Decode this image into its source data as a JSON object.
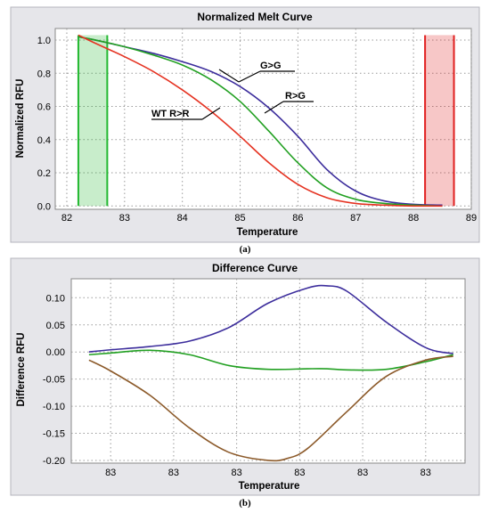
{
  "chart_data": [
    {
      "type": "line",
      "title": "Normalized Melt Curve",
      "xlabel": "Temperature",
      "ylabel": "Normalized RFU",
      "xlim": [
        81.8,
        89
      ],
      "ylim": [
        -0.02,
        1.07
      ],
      "xticks": [
        "82",
        "83",
        "84",
        "85",
        "86",
        "87",
        "88",
        "89"
      ],
      "yticks": [
        "0.0",
        "0.2",
        "0.4",
        "0.6",
        "0.8",
        "1.0"
      ],
      "grid": true,
      "caption": "(a)",
      "series": [
        {
          "color": "#3c2d9c",
          "x": [
            82.2,
            82.5,
            83,
            83.5,
            84,
            84.5,
            85,
            85.5,
            86,
            86.5,
            87,
            87.5,
            88,
            88.5
          ],
          "y": [
            1.02,
            1.0,
            0.96,
            0.92,
            0.87,
            0.81,
            0.72,
            0.59,
            0.42,
            0.22,
            0.09,
            0.03,
            0.01,
            0.005
          ]
        },
        {
          "color": "#22a022",
          "x": [
            82.2,
            82.5,
            83,
            83.5,
            84,
            84.5,
            85,
            85.5,
            86,
            86.5,
            87,
            87.5,
            88,
            88.5
          ],
          "y": [
            1.02,
            1.0,
            0.96,
            0.91,
            0.85,
            0.76,
            0.63,
            0.45,
            0.26,
            0.11,
            0.04,
            0.015,
            0.005,
            0.0
          ]
        },
        {
          "color": "#e53322",
          "x": [
            82.2,
            82.5,
            83,
            83.5,
            84,
            84.5,
            85,
            85.5,
            86,
            86.5,
            87,
            87.5,
            88,
            88.5
          ],
          "y": [
            1.03,
            0.98,
            0.9,
            0.81,
            0.7,
            0.57,
            0.42,
            0.26,
            0.13,
            0.05,
            0.015,
            0.005,
            0.0,
            0.0
          ]
        }
      ],
      "annotations": [
        "G>G",
        "R>G",
        "WT R>R"
      ],
      "highlight_regions": [
        {
          "x": [
            82.2,
            82.7
          ],
          "color": "#22b830"
        },
        {
          "x": [
            88.2,
            88.7
          ],
          "color": "#e02020"
        }
      ]
    },
    {
      "type": "line",
      "title": "Difference Curve",
      "xlabel": "Temperature",
      "ylabel": "Difference RFU",
      "xlim": [
        0,
        1
      ],
      "ylim": [
        -0.205,
        0.135
      ],
      "xticks": [
        "83",
        "83",
        "83",
        "83",
        "83",
        "83"
      ],
      "yticks": [
        "0.10",
        "0.05",
        "0.00",
        "-0.05",
        "-0.10",
        "-0.15",
        "-0.20"
      ],
      "grid": true,
      "caption": "(b)",
      "series": [
        {
          "color": "#3c2d9c",
          "x": [
            0.045,
            0.1,
            0.2,
            0.3,
            0.4,
            0.5,
            0.6,
            0.65,
            0.7,
            0.8,
            0.9,
            0.97
          ],
          "y": [
            0.0,
            0.004,
            0.01,
            0.02,
            0.045,
            0.09,
            0.118,
            0.122,
            0.112,
            0.055,
            0.008,
            -0.003
          ]
        },
        {
          "color": "#22a022",
          "x": [
            0.045,
            0.1,
            0.2,
            0.3,
            0.4,
            0.5,
            0.6,
            0.65,
            0.7,
            0.8,
            0.9,
            0.97
          ],
          "y": [
            -0.005,
            -0.002,
            0.003,
            -0.005,
            -0.025,
            -0.032,
            -0.031,
            -0.031,
            -0.033,
            -0.032,
            -0.018,
            -0.005
          ]
        },
        {
          "color": "#8c5a2a",
          "x": [
            0.045,
            0.1,
            0.2,
            0.3,
            0.4,
            0.5,
            0.55,
            0.6,
            0.7,
            0.8,
            0.9,
            0.97
          ],
          "y": [
            -0.015,
            -0.035,
            -0.08,
            -0.14,
            -0.185,
            -0.2,
            -0.196,
            -0.178,
            -0.11,
            -0.045,
            -0.015,
            -0.008
          ]
        }
      ]
    }
  ]
}
